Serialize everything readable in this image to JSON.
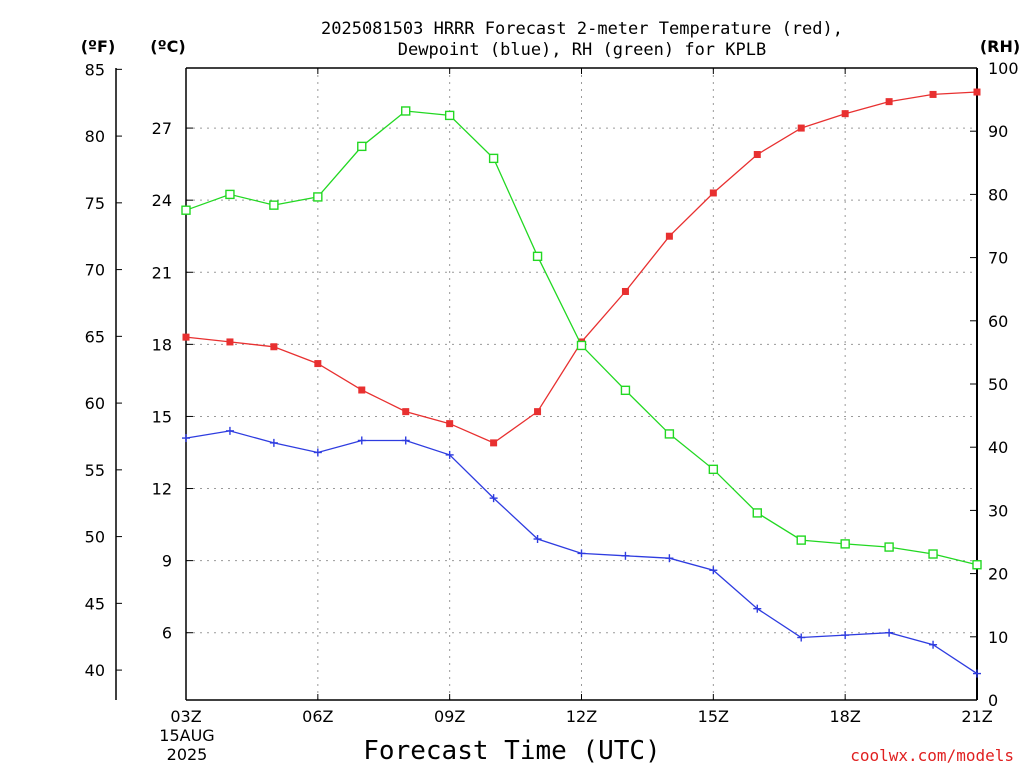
{
  "chart_data": {
    "type": "line",
    "title_line1": "2025081503 HRRR Forecast 2-meter Temperature (red),",
    "title_line2": "Dewpoint (blue), RH (green) for KPLB",
    "xlabel": "Forecast Time (UTC)",
    "x_hours": [
      3,
      4,
      5,
      6,
      7,
      8,
      9,
      10,
      11,
      12,
      13,
      14,
      15,
      16,
      17,
      18,
      19,
      20,
      21
    ],
    "xlim": [
      3,
      21
    ],
    "x_ticks": [
      {
        "hour": 3,
        "label": "03Z"
      },
      {
        "hour": 6,
        "label": "06Z"
      },
      {
        "hour": 9,
        "label": "09Z"
      },
      {
        "hour": 12,
        "label": "12Z"
      },
      {
        "hour": 15,
        "label": "15Z"
      },
      {
        "hour": 18,
        "label": "18Z"
      },
      {
        "hour": 21,
        "label": "21Z"
      }
    ],
    "date_line1": "15AUG",
    "date_line2": "2025",
    "left_axis_f": {
      "unit": "(ºF)",
      "ticks": [
        "40",
        "45",
        "50",
        "55",
        "60",
        "65",
        "70",
        "75",
        "80",
        "85"
      ]
    },
    "left_axis_c": {
      "unit": "(ºC)",
      "ylim": [
        3.2,
        29.5
      ],
      "ticks": [
        "6",
        "9",
        "12",
        "15",
        "18",
        "21",
        "24",
        "27"
      ]
    },
    "right_axis_rh": {
      "unit": "(RH)",
      "ylim": [
        0,
        100
      ],
      "ticks": [
        "0",
        "10",
        "20",
        "30",
        "40",
        "50",
        "60",
        "70",
        "80",
        "90",
        "100"
      ]
    },
    "grid": true,
    "series": [
      {
        "name": "Temperature",
        "axis": "celsius",
        "color": "#e83030",
        "marker": "filled-square",
        "values": [
          18.3,
          18.1,
          17.9,
          17.2,
          16.1,
          15.2,
          14.7,
          13.9,
          15.2,
          18.1,
          20.2,
          22.5,
          24.3,
          25.9,
          27.0,
          27.6,
          28.1,
          28.4,
          28.5
        ]
      },
      {
        "name": "Dewpoint",
        "axis": "celsius",
        "color": "#2e3ce0",
        "marker": "plus",
        "values": [
          14.1,
          14.4,
          13.9,
          13.5,
          14.0,
          14.0,
          13.4,
          11.6,
          9.9,
          9.3,
          9.2,
          9.1,
          8.6,
          7.0,
          5.8,
          5.9,
          6.0,
          5.5,
          4.3
        ]
      },
      {
        "name": "RH",
        "axis": "rh",
        "color": "#22d822",
        "marker": "open-square",
        "values": [
          77.5,
          80.0,
          78.3,
          79.6,
          87.6,
          93.2,
          92.5,
          85.7,
          70.2,
          56.1,
          49.0,
          42.1,
          36.5,
          29.6,
          25.3,
          24.7,
          24.2,
          23.1,
          21.4
        ]
      }
    ],
    "watermark": "coolwx.com/models"
  }
}
